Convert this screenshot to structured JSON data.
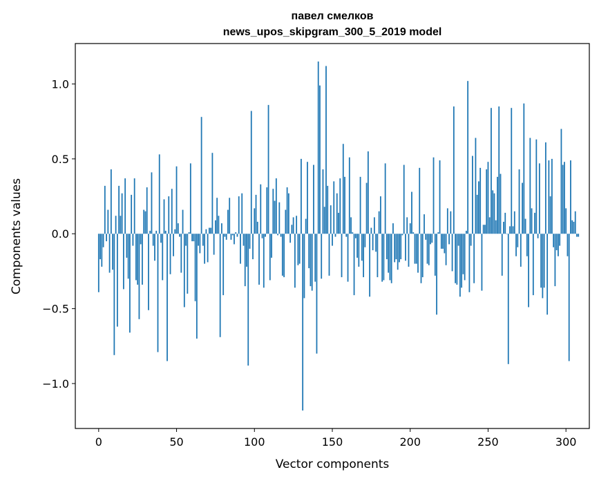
{
  "chart_data": {
    "type": "bar",
    "title_line1": "павел смелков",
    "title_line2": "news_upos_skipgram_300_5_2019 model",
    "xlabel": "Vector components",
    "ylabel": "Components values",
    "xlim": [
      -15,
      315
    ],
    "ylim": [
      -1.3,
      1.27
    ],
    "xticks": [
      0,
      50,
      100,
      150,
      200,
      250,
      300
    ],
    "xtick_labels": [
      "0",
      "50",
      "100",
      "150",
      "200",
      "250",
      "300"
    ],
    "yticks": [
      -1.0,
      -0.5,
      0.0,
      0.5,
      1.0
    ],
    "ytick_labels": [
      "−1.0",
      "−0.5",
      "0.0",
      "0.5",
      "1.0"
    ],
    "bar_color": "#1f77b4",
    "values": [
      -0.39,
      -0.17,
      -0.22,
      -0.09,
      0.32,
      -0.05,
      0.16,
      -0.26,
      0.43,
      -0.24,
      -0.81,
      0.12,
      -0.62,
      0.32,
      0.12,
      0.27,
      -0.37,
      0.37,
      -0.16,
      -0.3,
      -0.66,
      0.26,
      -0.08,
      0.37,
      -0.31,
      -0.34,
      -0.57,
      -0.07,
      -0.34,
      0.16,
      0.15,
      0.31,
      -0.51,
      0.02,
      0.41,
      -0.08,
      -0.18,
      0.02,
      -0.79,
      0.53,
      -0.06,
      -0.31,
      0.23,
      0.02,
      -0.85,
      0.25,
      -0.27,
      0.3,
      -0.15,
      0.03,
      0.45,
      0.07,
      -0.02,
      -0.26,
      0.16,
      -0.49,
      -0.08,
      -0.4,
      0.01,
      0.47,
      -0.05,
      -0.05,
      -0.45,
      -0.7,
      -0.08,
      -0.13,
      0.78,
      -0.08,
      -0.2,
      0.03,
      -0.19,
      0.04,
      0.04,
      0.54,
      -0.14,
      0.09,
      0.24,
      0.12,
      -0.69,
      0.07,
      -0.41,
      -0.02,
      -0.04,
      0.16,
      0.24,
      -0.04,
      -0.01,
      -0.07,
      0.01,
      -0.02,
      0.25,
      -0.2,
      0.27,
      -0.08,
      -0.35,
      -0.22,
      -0.88,
      -0.1,
      0.82,
      -0.17,
      0.17,
      0.26,
      0.08,
      -0.34,
      0.33,
      -0.03,
      -0.36,
      -0.02,
      0.31,
      0.86,
      -0.31,
      -0.16,
      0.3,
      0.22,
      0.37,
      -0.01,
      0.21,
      -0.02,
      -0.28,
      -0.29,
      0.16,
      0.31,
      0.27,
      -0.06,
      0.06,
      0.11,
      -0.36,
      0.12,
      -0.21,
      -0.2,
      0.5,
      -1.18,
      -0.43,
      0.1,
      0.48,
      -0.23,
      -0.35,
      -0.38,
      0.46,
      -0.32,
      -0.8,
      1.15,
      0.99,
      -0.3,
      0.43,
      0.18,
      1.12,
      0.32,
      -0.28,
      0.19,
      -0.08,
      0.35,
      -0.02,
      0.27,
      0.14,
      0.37,
      -0.29,
      0.6,
      0.38,
      -0.02,
      -0.32,
      0.51,
      0.11,
      0.01,
      -0.41,
      -0.03,
      -0.16,
      -0.22,
      0.38,
      -0.18,
      -0.29,
      -0.09,
      0.34,
      0.55,
      -0.42,
      0.04,
      -0.11,
      0.11,
      -0.12,
      -0.29,
      0.15,
      0.25,
      -0.32,
      -0.31,
      0.47,
      -0.17,
      -0.26,
      -0.31,
      -0.33,
      0.07,
      -0.19,
      -0.17,
      -0.24,
      -0.19,
      -0.17,
      -0.01,
      0.46,
      -0.18,
      0.11,
      -0.22,
      0.07,
      0.28,
      0.01,
      -0.2,
      -0.2,
      -0.26,
      0.44,
      -0.33,
      -0.29,
      0.13,
      -0.04,
      -0.2,
      -0.21,
      -0.07,
      -0.06,
      0.51,
      -0.28,
      -0.54,
      0.01,
      0.49,
      -0.1,
      -0.1,
      -0.13,
      -0.21,
      0.17,
      -0.07,
      0.15,
      -0.25,
      0.85,
      -0.33,
      -0.34,
      -0.08,
      -0.42,
      -0.36,
      -0.27,
      -0.31,
      0.02,
      1.02,
      -0.39,
      -0.08,
      0.52,
      -0.33,
      0.64,
      0.26,
      0.35,
      0.44,
      -0.38,
      0.06,
      0.06,
      0.43,
      0.48,
      0.11,
      0.84,
      0.29,
      0.27,
      0.09,
      0.38,
      0.85,
      0.4,
      -0.28,
      0.08,
      0.14,
      0.0,
      -0.87,
      0.05,
      0.84,
      0.05,
      0.15,
      -0.15,
      -0.09,
      0.43,
      -0.22,
      0.34,
      0.87,
      0.1,
      -0.15,
      -0.49,
      0.64,
      0.17,
      -0.41,
      0.14,
      0.63,
      -0.03,
      0.47,
      -0.36,
      -0.43,
      -0.36,
      0.61,
      -0.54,
      0.49,
      0.25,
      0.5,
      -0.09,
      -0.35,
      -0.11,
      -0.15,
      -0.08,
      0.7,
      0.46,
      0.48,
      0.17,
      -0.15,
      -0.85,
      0.49,
      0.09,
      0.08,
      0.15,
      -0.02,
      -0.02
    ]
  }
}
